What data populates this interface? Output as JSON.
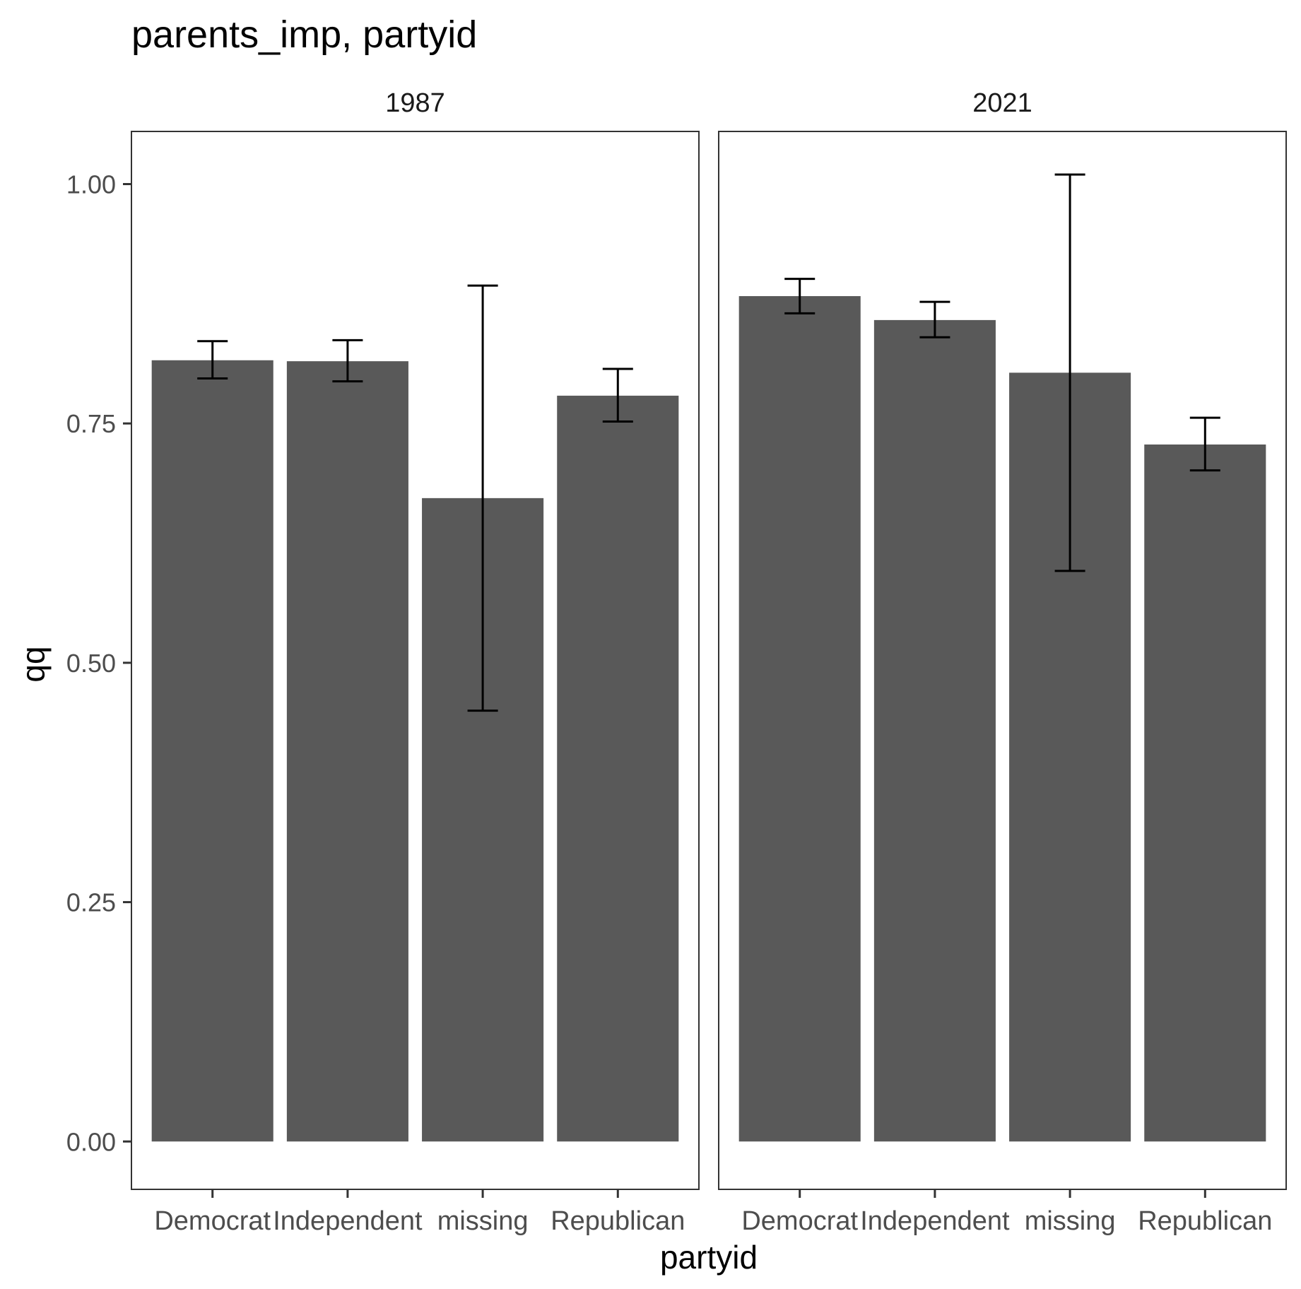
{
  "chart_data": {
    "type": "bar",
    "title": "parents_imp, partyid",
    "xlabel": "partyid",
    "ylabel": "qq",
    "ylim": [
      -0.05,
      1.055
    ],
    "yticks": [
      0.0,
      0.25,
      0.5,
      0.75,
      1.0
    ],
    "ytick_labels": [
      "0.00",
      "0.25",
      "0.50",
      "0.75",
      "1.00"
    ],
    "categories": [
      "Democrat",
      "Independent",
      "missing",
      "Republican"
    ],
    "bar_color": "#595959",
    "grid": false,
    "facets": [
      {
        "label": "1987",
        "values": [
          0.816,
          0.815,
          0.672,
          0.779
        ],
        "lower": [
          0.797,
          0.794,
          0.45,
          0.752
        ],
        "upper": [
          0.836,
          0.837,
          0.894,
          0.807
        ]
      },
      {
        "label": "2021",
        "values": [
          0.883,
          0.858,
          0.803,
          0.728
        ],
        "lower": [
          0.865,
          0.84,
          0.596,
          0.701
        ],
        "upper": [
          0.901,
          0.877,
          1.01,
          0.756
        ]
      }
    ]
  }
}
